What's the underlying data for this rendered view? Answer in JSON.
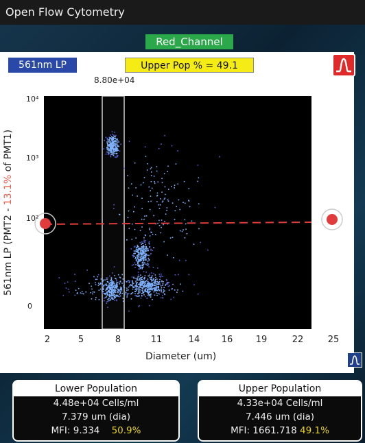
{
  "window": {
    "title": "Open Flow Cytometry"
  },
  "channel_label": "Red_Channel",
  "filter_label": "561nm LP",
  "upper_pop_label": "Upper Pop % = 49.1",
  "gate_value": "8.80e+04",
  "plot": {
    "y_axis_label_prefix": "561nm LP (PMT2 - ",
    "y_axis_label_highlight": "13.1%",
    "y_axis_label_suffix": " of PMT1)",
    "x_axis_label": "Diameter (um)",
    "x_ticks": [
      "2",
      "5",
      "8",
      "11",
      "14",
      "16",
      "19",
      "22",
      "25"
    ],
    "y_ticks": [
      "10⁴",
      "10³",
      "10²",
      "0"
    ],
    "threshold_color": "#e23b3b"
  },
  "lower_population": {
    "title": "Lower Population",
    "cells": "4.48e+04 Cells/ml",
    "diameter": "7.379 um (dia)",
    "mfi": "MFI: 9.334",
    "percent": "50.9%"
  },
  "upper_population": {
    "title": "Upper Population",
    "cells": "4.33e+04 Cells/ml",
    "diameter": "7.446 um (dia)",
    "mfi": "MFI: 1661.718",
    "percent": "49.1%"
  },
  "icons": {
    "histogram_button": "histogram-peak-icon",
    "histogram_small": "histogram-small-icon"
  }
}
